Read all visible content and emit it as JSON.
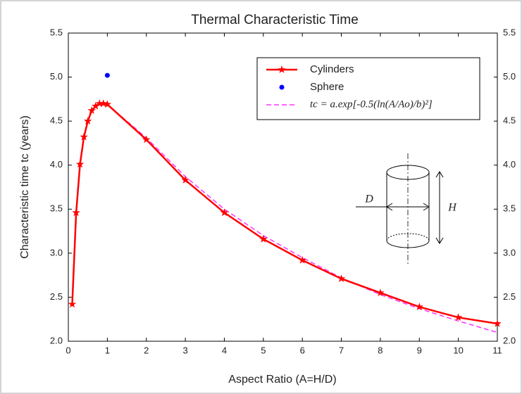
{
  "chart_data": {
    "type": "line",
    "title": "Thermal Characteristic Time",
    "x_label": "Aspect Ratio (A=H/D)",
    "y_label": "Characteristic time tc (years)",
    "xlim": [
      0,
      11
    ],
    "xticks": [
      0,
      1,
      2,
      3,
      4,
      5,
      6,
      7,
      8,
      9,
      10,
      11
    ],
    "ylim": [
      2.0,
      5.5
    ],
    "yticks": [
      {
        "value": 2,
        "label": "2.0"
      },
      2.5,
      {
        "value": 3,
        "label": "3.0"
      },
      3.5,
      {
        "value": 4,
        "label": "4.0"
      },
      4.5,
      {
        "value": 5,
        "label": "5.0"
      },
      5.5
    ],
    "legend": "upper right",
    "annotations": [
      "D",
      "H"
    ],
    "series": [
      {
        "name": "Cylinders",
        "color": "#ff0000",
        "marker": "star",
        "x": [
          0.1,
          0.2,
          0.3,
          0.4,
          0.5,
          0.6,
          0.7,
          0.8,
          0.9,
          1,
          2,
          3,
          4,
          5,
          6,
          7,
          8,
          9,
          10,
          11
        ],
        "values": [
          2.42,
          3.46,
          4.01,
          4.32,
          4.5,
          4.62,
          4.67,
          4.7,
          4.7,
          4.69,
          4.29,
          3.83,
          3.46,
          3.16,
          2.92,
          2.71,
          2.55,
          2.39,
          2.27,
          2.2
        ]
      },
      {
        "name": "Sphere",
        "color": "#0000ff",
        "marker": "dot",
        "x": [
          1
        ],
        "values": [
          5.02
        ]
      },
      {
        "name": "tc = a.exp[-0.5(ln(A/Ao)/b)²]",
        "color": "#ff33ff",
        "marker": "dash",
        "x": [
          0.1,
          0.2,
          0.3,
          0.4,
          0.5,
          0.6,
          0.7,
          0.8,
          0.9,
          1,
          2,
          3,
          4,
          5,
          6,
          7,
          8,
          9,
          10,
          11
        ],
        "values": [
          2.42,
          3.46,
          4.01,
          4.32,
          4.5,
          4.62,
          4.67,
          4.7,
          4.7,
          4.69,
          4.31,
          3.87,
          3.5,
          3.2,
          2.95,
          2.72,
          2.53,
          2.37,
          2.23,
          2.1
        ]
      }
    ]
  }
}
